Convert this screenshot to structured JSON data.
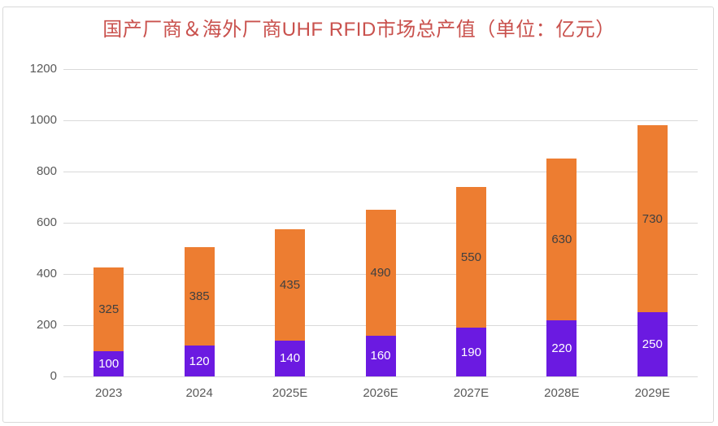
{
  "chart_data": {
    "type": "bar",
    "stacked": true,
    "title": "国产厂商＆海外厂商UHF RFID市场总产值（单位：亿元）",
    "title_color": "#c9514d",
    "categories": [
      "2023",
      "2024",
      "2025E",
      "2026E",
      "2027E",
      "2028E",
      "2029E"
    ],
    "series": [
      {
        "name": "国产厂商",
        "color": "#6b1ae1",
        "label_color": "#ffffff",
        "values": [
          100,
          120,
          140,
          160,
          190,
          220,
          250
        ]
      },
      {
        "name": "海外厂商",
        "color": "#ed7d31",
        "label_color": "#404040",
        "values": [
          325,
          385,
          435,
          490,
          550,
          630,
          730
        ]
      }
    ],
    "totals": [
      425,
      505,
      575,
      650,
      740,
      850,
      980
    ],
    "xlabel": "",
    "ylabel": "",
    "ylim": [
      0,
      1200
    ],
    "yticks": [
      0,
      200,
      400,
      600,
      800,
      1000,
      1200
    ],
    "grid": true,
    "gridline_color": "#d9d9d9",
    "axis_label_color": "#595959",
    "legend": "none",
    "background": "#ffffff"
  }
}
